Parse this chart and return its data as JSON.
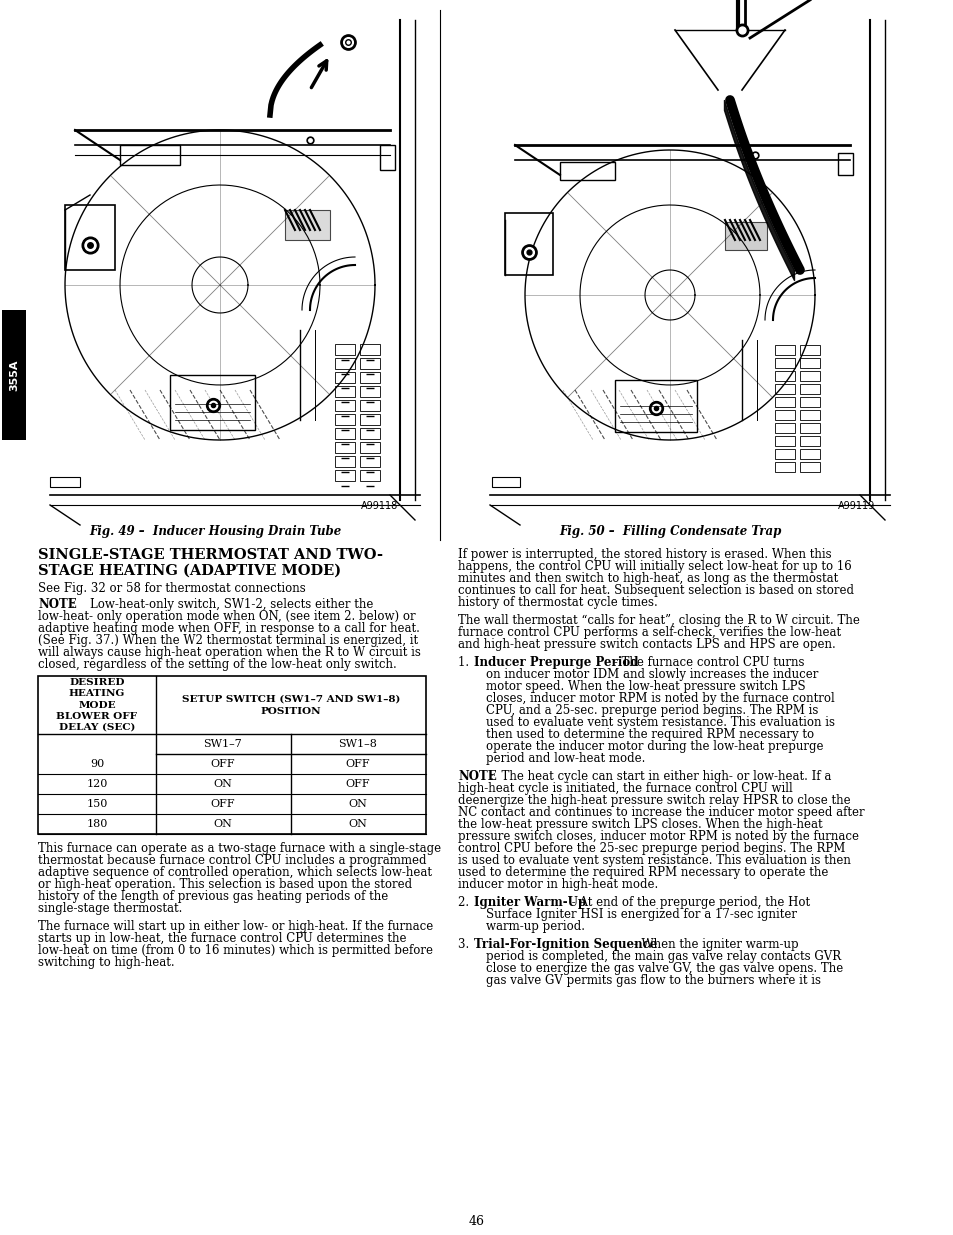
{
  "page_bg": "#ffffff",
  "page_number": "46",
  "fig49_caption": "Fig. 49 –  Inducer Housing Drain Tube",
  "fig50_caption": "Fig. 50 –  Filling Condensate Trap",
  "fig49_ref": "A99118",
  "fig50_ref": "A99119",
  "sidebar_text": "355A",
  "section_title_line1": "SINGLE-STAGE THERMOSTAT AND TWO-",
  "section_title_line2": "STAGE HEATING (ADAPTIVE MODE)",
  "subtitle": "See Fig. 32 or 58 for thermostat connections",
  "table_rows": [
    [
      "90",
      "OFF",
      "OFF"
    ],
    [
      "120",
      "ON",
      "OFF"
    ],
    [
      "150",
      "OFF",
      "ON"
    ],
    [
      "180",
      "ON",
      "ON"
    ]
  ]
}
